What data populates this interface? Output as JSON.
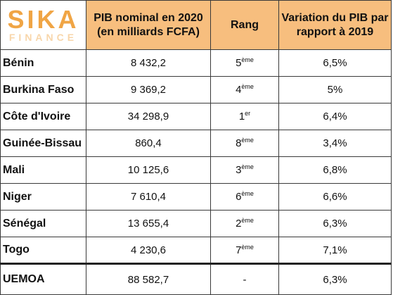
{
  "logo": {
    "name": "SIKA",
    "sub": "FINANCE",
    "color": "#f0a545"
  },
  "header": {
    "pib_line1": "PIB nominal en 2020",
    "pib_line2": "(en milliards FCFA)",
    "rank": "Rang",
    "var_line1": "Variation du PIB par",
    "var_line2": "rapport à 2019",
    "background": "#f7be7e"
  },
  "rows": [
    {
      "country": "Bénin",
      "pib": "8 432,2",
      "rank": "5",
      "rank_suffix": "ème",
      "variation": "6,5%"
    },
    {
      "country": "Burkina Faso",
      "pib": "9 369,2",
      "rank": "4",
      "rank_suffix": "ème",
      "variation": "5%"
    },
    {
      "country": "Côte d'Ivoire",
      "pib": "34 298,9",
      "rank": "1",
      "rank_suffix": "er",
      "variation": "6,4%"
    },
    {
      "country": "Guinée-Bissau",
      "pib": "860,4",
      "rank": "8",
      "rank_suffix": "ème",
      "variation": "3,4%"
    },
    {
      "country": "Mali",
      "pib": "10 125,6",
      "rank": "3",
      "rank_suffix": "ème",
      "variation": "6,8%"
    },
    {
      "country": "Niger",
      "pib": "7 610,4",
      "rank": "6",
      "rank_suffix": "ème",
      "variation": "6,6%"
    },
    {
      "country": "Sénégal",
      "pib": "13 655,4",
      "rank": "2",
      "rank_suffix": "ème",
      "variation": "6,3%"
    },
    {
      "country": "Togo",
      "pib": "4 230,6",
      "rank": "7",
      "rank_suffix": "ème",
      "variation": "7,1%"
    }
  ],
  "total": {
    "country": "UEMOA",
    "pib": "88 582,7",
    "rank": "-",
    "variation": "6,3%"
  }
}
